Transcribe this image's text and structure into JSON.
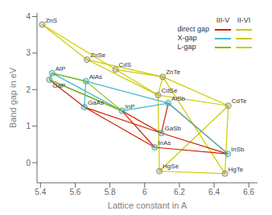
{
  "chart_data": {
    "type": "scatter",
    "xlabel": "Lattice constant in A",
    "ylabel": "Band gap in eV",
    "xlim": [
      5.38,
      6.65
    ],
    "ylim": [
      -0.55,
      4.1
    ],
    "xticks": [
      5.4,
      5.6,
      5.8,
      6,
      6.2,
      6.4,
      6.6
    ],
    "yticks": [
      0,
      1,
      2,
      3,
      4
    ],
    "grid": false,
    "legend": "upper right",
    "legend_columns": [
      "III-V",
      "II-VI"
    ],
    "series": [
      {
        "name": "II-VI",
        "color": "#909070",
        "marker": "circle",
        "labels": [
          "ZnS",
          "ZnSe",
          "ZnTe",
          "CdS",
          "CdSe",
          "CdTe",
          "HgSe",
          "HgTe"
        ],
        "x": [
          5.41,
          5.668,
          6.104,
          5.832,
          6.077,
          6.482,
          6.085,
          6.462
        ],
        "y": [
          3.78,
          2.82,
          2.35,
          2.55,
          1.85,
          1.56,
          -0.23,
          -0.3
        ]
      },
      {
        "name": "III-V",
        "color": "#40aaaa",
        "marker": "circle",
        "labels": [
          "GaP",
          "AlP",
          "AlAs",
          "GaAs",
          "InP",
          "AlSb",
          "GaSb",
          "InAs",
          "InSb"
        ],
        "x": [
          5.451,
          5.467,
          5.661,
          5.653,
          5.869,
          6.136,
          6.096,
          6.058,
          6.479
        ],
        "y": [
          2.27,
          2.45,
          2.23,
          1.52,
          1.42,
          1.63,
          0.81,
          0.42,
          0.24
        ]
      }
    ],
    "connections": [
      {
        "group": "II-VI",
        "color": "#cccc00",
        "pairs": [
          [
            "ZnS",
            "ZnSe"
          ],
          [
            "ZnSe",
            "ZnTe"
          ],
          [
            "ZnS",
            "CdS"
          ],
          [
            "ZnSe",
            "CdSe"
          ],
          [
            "ZnTe",
            "CdTe"
          ],
          [
            "CdS",
            "CdSe"
          ],
          [
            "CdSe",
            "CdTe"
          ],
          [
            "CdS",
            "ZnTe"
          ],
          [
            "CdSe",
            "ZnTe"
          ],
          [
            "HgSe",
            "CdSe"
          ],
          [
            "HgSe",
            "CdTe"
          ],
          [
            "HgTe",
            "CdTe"
          ],
          [
            "HgSe",
            "HgTe"
          ],
          [
            "ZnTe",
            "HgTe"
          ]
        ]
      },
      {
        "group": "III-V",
        "name": "direct gap",
        "color": "#cc2200",
        "pairs": [
          [
            "GaP",
            "GaAs"
          ],
          [
            "GaAs",
            "InAs"
          ],
          [
            "GaAs",
            "GaSb"
          ],
          [
            "InP",
            "InAs"
          ],
          [
            "InAs",
            "InSb"
          ],
          [
            "GaSb",
            "InSb"
          ],
          [
            "AlSb",
            "InSb"
          ],
          [
            "AlSb",
            "GaSb"
          ],
          [
            "InP",
            "GaSb"
          ],
          [
            "GaP",
            "InP"
          ]
        ]
      },
      {
        "group": "III-V",
        "name": "X-gap",
        "color": "#44bbcc",
        "pairs": [
          [
            "AlP",
            "AlAs"
          ],
          [
            "AlAs",
            "AlSb"
          ],
          [
            "GaP",
            "AlP"
          ],
          [
            "AlAs",
            "GaAs"
          ],
          [
            "GaP",
            "InP"
          ],
          [
            "AlP",
            "InP"
          ],
          [
            "InP",
            "AlSb"
          ],
          [
            "AlSb",
            "InSb"
          ]
        ]
      },
      {
        "group": "III-V",
        "name": "L-gap",
        "color": "#88bb00",
        "pairs": [
          [
            "GaP",
            "AlP"
          ],
          [
            "AlP",
            "AlAs"
          ],
          [
            "GaP",
            "InP"
          ],
          [
            "AlAs",
            "InP"
          ]
        ]
      }
    ]
  }
}
